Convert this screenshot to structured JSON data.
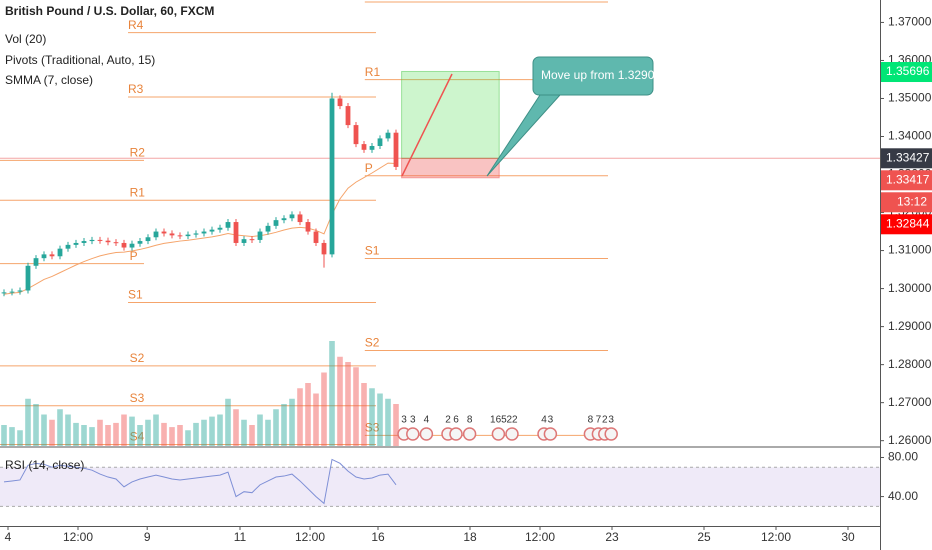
{
  "chart_data": {
    "type": "candlestick",
    "title": "British Pound / U.S. Dollar, 60, FXCM",
    "indicators": [
      "Vol (20)",
      "Pivots (Traditional, Auto, 15)",
      "SMMA (7, close)"
    ],
    "x": [
      0,
      1,
      2,
      3,
      4,
      5,
      6,
      7,
      8,
      9,
      10,
      11,
      12,
      13,
      14,
      15,
      16,
      17,
      18,
      19,
      20,
      21,
      22,
      23,
      24,
      25,
      26,
      27,
      28,
      29,
      30,
      31,
      32,
      33,
      34,
      35,
      36,
      37,
      38,
      39,
      40,
      41,
      42,
      43,
      44,
      45,
      46,
      47,
      48,
      49
    ],
    "open": [
      1.2988,
      1.299,
      1.2992,
      1.2995,
      1.306,
      1.308,
      1.309,
      1.3085,
      1.3105,
      1.3115,
      1.312,
      1.3125,
      1.3128,
      1.3126,
      1.3122,
      1.312,
      1.3108,
      1.3118,
      1.3125,
      1.3135,
      1.315,
      1.3145,
      1.314,
      1.3138,
      1.3142,
      1.3145,
      1.315,
      1.3155,
      1.316,
      1.3175,
      1.312,
      1.313,
      1.3128,
      1.315,
      1.3165,
      1.318,
      1.3185,
      1.3195,
      1.3175,
      1.315,
      1.312,
      1.309,
      1.35,
      1.348,
      1.343,
      1.338,
      1.3365,
      1.3375,
      1.3395,
      1.341
    ],
    "high": [
      1.2998,
      1.3,
      1.3003,
      1.3068,
      1.3088,
      1.3098,
      1.3098,
      1.3113,
      1.3123,
      1.3128,
      1.3133,
      1.3136,
      1.3136,
      1.3134,
      1.313,
      1.3128,
      1.3126,
      1.3133,
      1.3143,
      1.3158,
      1.3158,
      1.3153,
      1.3148,
      1.315,
      1.3153,
      1.3158,
      1.3163,
      1.3168,
      1.3183,
      1.3183,
      1.3138,
      1.3138,
      1.3158,
      1.3173,
      1.3188,
      1.3193,
      1.3203,
      1.3203,
      1.3183,
      1.3158,
      1.3128,
      1.3515,
      1.3508,
      1.3488,
      1.3438,
      1.3388,
      1.3383,
      1.3403,
      1.3418,
      1.3418
    ],
    "low": [
      1.298,
      1.2982,
      1.2984,
      1.2987,
      1.3052,
      1.3072,
      1.3077,
      1.3077,
      1.3097,
      1.3107,
      1.3112,
      1.3117,
      1.3118,
      1.3114,
      1.3112,
      1.31,
      1.31,
      1.311,
      1.3117,
      1.3127,
      1.3137,
      1.3132,
      1.313,
      1.313,
      1.3134,
      1.3137,
      1.3142,
      1.3147,
      1.3152,
      1.3112,
      1.3112,
      1.312,
      1.312,
      1.3142,
      1.3157,
      1.3172,
      1.3177,
      1.3167,
      1.3142,
      1.3112,
      1.3055,
      1.3082,
      1.3472,
      1.3422,
      1.3372,
      1.3357,
      1.3357,
      1.3367,
      1.3387,
      1.3312
    ],
    "close": [
      1.299,
      1.2992,
      1.2995,
      1.306,
      1.308,
      1.309,
      1.3085,
      1.3105,
      1.3115,
      1.312,
      1.3125,
      1.3128,
      1.3126,
      1.3122,
      1.312,
      1.3108,
      1.3118,
      1.3125,
      1.3135,
      1.315,
      1.3145,
      1.314,
      1.3138,
      1.3142,
      1.3145,
      1.315,
      1.3155,
      1.316,
      1.3175,
      1.312,
      1.313,
      1.3128,
      1.315,
      1.3165,
      1.318,
      1.3185,
      1.3195,
      1.3175,
      1.315,
      1.312,
      1.309,
      1.35,
      1.348,
      1.343,
      1.338,
      1.3365,
      1.3375,
      1.3395,
      1.341,
      1.332
    ],
    "smma": [
      1.2985,
      1.2988,
      1.299,
      1.3,
      1.3012,
      1.3024,
      1.3032,
      1.3042,
      1.3052,
      1.3062,
      1.3071,
      1.3079,
      1.3086,
      1.3091,
      1.3095,
      1.3096,
      1.3099,
      1.3103,
      1.3108,
      1.3114,
      1.3119,
      1.3122,
      1.3125,
      1.3127,
      1.313,
      1.3133,
      1.3136,
      1.314,
      1.3145,
      1.3141,
      1.3139,
      1.3137,
      1.3139,
      1.3143,
      1.3148,
      1.3154,
      1.3159,
      1.3161,
      1.3159,
      1.3153,
      1.3144,
      1.3195,
      1.3236,
      1.3264,
      1.328,
      1.3292,
      1.3304,
      1.3317,
      1.333,
      1.3329
    ],
    "volume": [
      20,
      18,
      15,
      45,
      40,
      30,
      25,
      35,
      30,
      22,
      20,
      18,
      25,
      20,
      22,
      30,
      28,
      20,
      25,
      30,
      22,
      18,
      20,
      15,
      22,
      25,
      28,
      30,
      45,
      35,
      25,
      20,
      30,
      25,
      35,
      40,
      45,
      55,
      60,
      50,
      70,
      100,
      85,
      80,
      75,
      60,
      55,
      50,
      45,
      40
    ],
    "vlim": [
      0,
      100
    ],
    "up_color": "#26a69a",
    "down_color": "#ef5350",
    "smma_color": "#f5a46b",
    "xlim": [
      0,
      110
    ],
    "xticks": [
      {
        "value": 1,
        "label": "4"
      },
      {
        "value": 9.75,
        "label": "12:00"
      },
      {
        "value": 18.4,
        "label": "9"
      },
      {
        "value": 30,
        "label": "11"
      },
      {
        "value": 38.75,
        "label": "12:00"
      },
      {
        "value": 47.25,
        "label": "16"
      },
      {
        "value": 58.75,
        "label": "18"
      },
      {
        "value": 67.5,
        "label": "12:00"
      },
      {
        "value": 76.5,
        "label": "23"
      },
      {
        "value": 88,
        "label": "25"
      },
      {
        "value": 97,
        "label": "12:00"
      },
      {
        "value": 106,
        "label": "30"
      }
    ],
    "ylim": [
      1.2586,
      1.3759
    ],
    "yticks": [
      {
        "value": 1.37,
        "label": "1.37000"
      },
      {
        "value": 1.36,
        "label": "1.36000"
      },
      {
        "value": 1.35,
        "label": "1.35000"
      },
      {
        "value": 1.34,
        "label": "1.34000"
      },
      {
        "value": 1.33,
        "label": "1.33000"
      },
      {
        "value": 1.32,
        "label": "1.32000"
      },
      {
        "value": 1.31,
        "label": "1.31000"
      },
      {
        "value": 1.3,
        "label": "1.30000"
      },
      {
        "value": 1.29,
        "label": "1.29000"
      },
      {
        "value": 1.28,
        "label": "1.28000"
      },
      {
        "value": 1.27,
        "label": "1.27000"
      },
      {
        "value": 1.26,
        "label": "1.26000"
      }
    ],
    "price_badges": [
      {
        "value": 1.35696,
        "color": "#00e676"
      },
      {
        "value": 1.33427,
        "color": "#363a45"
      },
      {
        "value": 1.33417,
        "color": "#ef5350",
        "countdown": "13:12"
      },
      {
        "value": 1.32844,
        "color": "#ff0000"
      }
    ],
    "current_price": 1.33427,
    "pivot_color": "#f5a46b",
    "pivots": [
      {
        "name": "R4",
        "value": 1.36731,
        "from": 16,
        "to": 47
      },
      {
        "name": "R3",
        "value": 1.35038,
        "from": 16,
        "to": 47
      },
      {
        "name": "R2",
        "value": 1.33371,
        "from": 0,
        "to": 18
      },
      {
        "name": "R1",
        "value": 1.32323,
        "from": 0,
        "to": 47
      },
      {
        "name": "P",
        "value": 1.30656,
        "from": 0,
        "to": 18
      },
      {
        "name": "S1",
        "value": 1.29634,
        "from": 16,
        "to": 47
      },
      {
        "name": "S2",
        "value": 1.27968,
        "from": 0,
        "to": 47
      },
      {
        "name": "S3",
        "value": 1.26919,
        "from": 0,
        "to": 47
      },
      {
        "name": "S4",
        "value": 1.25898,
        "from": 0,
        "to": 47
      },
      {
        "name": "R2",
        "value": 1.37538,
        "from": 45.6,
        "to": 76
      },
      {
        "name": "R1",
        "value": 1.35495,
        "from": 45.6,
        "to": 76
      },
      {
        "name": "P",
        "value": 1.32968,
        "from": 45.6,
        "to": 76
      },
      {
        "name": "S1",
        "value": 1.3079,
        "from": 45.6,
        "to": 76
      },
      {
        "name": "S2",
        "value": 1.28371,
        "from": 45.6,
        "to": 76
      },
      {
        "name": "S3",
        "value": 1.2614,
        "from": 45.6,
        "to": 76
      }
    ],
    "position": {
      "x": [
        50.2,
        62.4
      ],
      "entry": 1.33425,
      "target": 1.3571,
      "stop": 1.32914
    },
    "annotation": "Move up from 1.3290",
    "events": [
      {
        "x": 50.5,
        "label": "3"
      },
      {
        "x": 51.6,
        "label": "3"
      },
      {
        "x": 53.3,
        "label": "4"
      },
      {
        "x": 56,
        "label": "2"
      },
      {
        "x": 57,
        "label": "6"
      },
      {
        "x": 58.7,
        "label": "8"
      },
      {
        "x": 62.3,
        "label": "165"
      },
      {
        "x": 64,
        "label": "22"
      },
      {
        "x": 68,
        "label": "4"
      },
      {
        "x": 68.8,
        "label": "3"
      },
      {
        "x": 73.8,
        "label": "8"
      },
      {
        "x": 74.8,
        "label": "7"
      },
      {
        "x": 75.6,
        "label": "2"
      },
      {
        "x": 76.4,
        "label": "3"
      }
    ],
    "rsi_title": "RSI (14, close)",
    "rsi": [
      55,
      56,
      57,
      72,
      74,
      73,
      70,
      72,
      71,
      70,
      69,
      67,
      63,
      60,
      58,
      50,
      55,
      58,
      60,
      62,
      60,
      58,
      57,
      58,
      59,
      60,
      61,
      62,
      65,
      40,
      45,
      44,
      52,
      56,
      60,
      61,
      63,
      56,
      48,
      40,
      33,
      78,
      74,
      66,
      60,
      58,
      59,
      62,
      63,
      52
    ],
    "rsi_color": "#7e8fd6",
    "rsi_ylim": [
      14,
      89.7
    ],
    "rsi_yticks": [
      {
        "value": 80,
        "label": "80.00"
      },
      {
        "value": 40,
        "label": "40.00"
      }
    ],
    "rsi_band": [
      30,
      70
    ]
  }
}
